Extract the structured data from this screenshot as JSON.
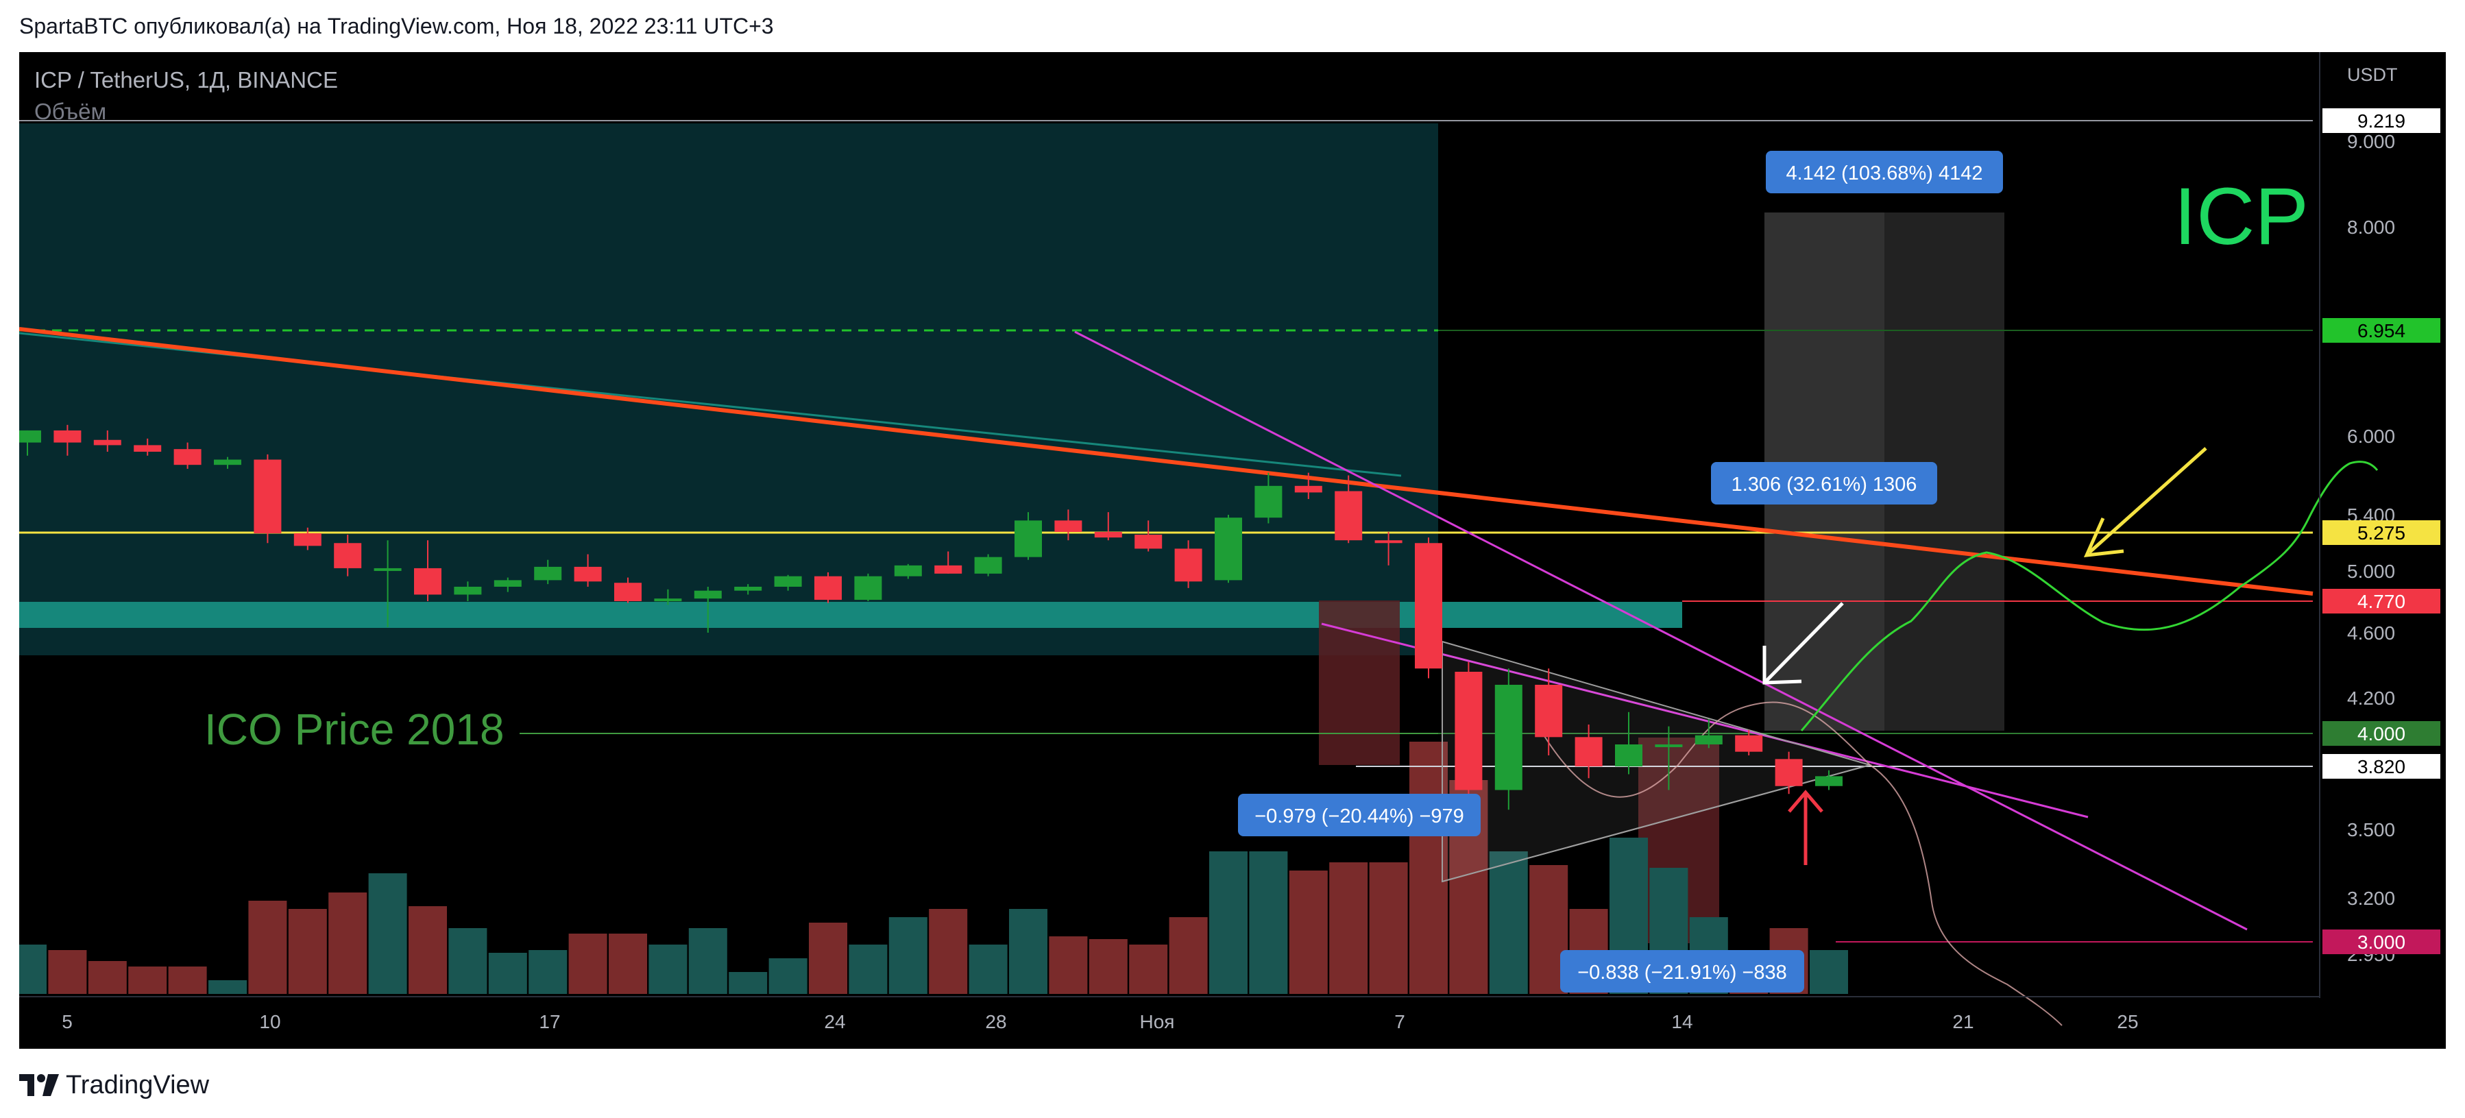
{
  "header": {
    "published": "SpartaBTC опубликовал(а) на TradingView.com, Ноя 18, 2022 23:11 UTC+3"
  },
  "footer": {
    "brand": "TradingView",
    "logo_icon": "tradingview-logo-icon"
  },
  "legend": {
    "symbol": "ICP / TetherUS, 1Д, BINANCE",
    "volume_label": "Объём"
  },
  "colors": {
    "background": "#000000",
    "up": "#1e9e36",
    "down": "#f23645",
    "volume_up": "#1a5652",
    "volume_down": "#7a2b2b",
    "trendline_orange": "#ff4a1a",
    "wedge_magenta": "#d63cd6",
    "level_yellow": "#f5e342",
    "zone_teal": "#16877b",
    "ico_green": "#3f9a3f",
    "projection_green": "#33d633",
    "label_blue": "#3a7bd5"
  },
  "annotations": {
    "ticker_big": "ICP",
    "ico_price": "ICO Price 2018",
    "measure_up_large": "4.142 (103.68%) 4142",
    "measure_up_small": "1.306 (32.61%) 1306",
    "measure_down_left": "−0.979 (−20.44%) −979",
    "measure_down_right": "−0.838 (−21.91%) −838"
  },
  "chart_data": {
    "type": "candlestick",
    "symbol": "ICP / TetherUS",
    "timeframe": "1Д",
    "exchange": "BINANCE",
    "y_unit": "USDT",
    "y_axis_ticks": [
      "9.000",
      "8.000",
      "6.000",
      "5.400",
      "5.000",
      "4.600",
      "4.200",
      "3.500",
      "3.200",
      "2.950"
    ],
    "x_axis_ticks": [
      "5",
      "10",
      "17",
      "24",
      "28",
      "Ноя",
      "7",
      "14",
      "21",
      "25"
    ],
    "price_labels": [
      {
        "value": "9.219",
        "bg": "#ffffff",
        "fg": "#000000"
      },
      {
        "value": "6.954",
        "bg": "#22c32b",
        "fg": "#000000"
      },
      {
        "value": "5.275",
        "bg": "#f5e342",
        "fg": "#000000"
      },
      {
        "value": "4.770",
        "bg": "#f23645",
        "fg": "#ffffff"
      },
      {
        "value": "4.000",
        "bg": "#2e7d32",
        "fg": "#ffffff"
      },
      {
        "value": "3.820",
        "bg": "#ffffff",
        "fg": "#000000"
      },
      {
        "value": "3.000",
        "bg": "#c2185b",
        "fg": "#ffffff"
      }
    ],
    "horizontal_levels": [
      9.219,
      6.954,
      5.275,
      4.77,
      4.0,
      3.82,
      3.0
    ],
    "candles": [
      {
        "date": "Oct 4",
        "o": 5.95,
        "h": 6.05,
        "l": 5.85,
        "c": 6.05
      },
      {
        "date": "Oct 5",
        "o": 6.05,
        "h": 6.1,
        "l": 5.85,
        "c": 5.95
      },
      {
        "date": "Oct 6",
        "o": 5.97,
        "h": 6.05,
        "l": 5.88,
        "c": 5.93
      },
      {
        "date": "Oct 7",
        "o": 5.93,
        "h": 5.98,
        "l": 5.85,
        "c": 5.88
      },
      {
        "date": "Oct 8",
        "o": 5.9,
        "h": 5.95,
        "l": 5.75,
        "c": 5.78
      },
      {
        "date": "Oct 9",
        "o": 5.78,
        "h": 5.84,
        "l": 5.75,
        "c": 5.82
      },
      {
        "date": "Oct 10",
        "o": 5.82,
        "h": 5.86,
        "l": 5.2,
        "c": 5.27
      },
      {
        "date": "Oct 11",
        "o": 5.27,
        "h": 5.31,
        "l": 5.15,
        "c": 5.18
      },
      {
        "date": "Oct 12",
        "o": 5.2,
        "h": 5.26,
        "l": 4.96,
        "c": 5.02
      },
      {
        "date": "Oct 13",
        "o": 5.02,
        "h": 5.22,
        "l": 4.63,
        "c": 5.02
      },
      {
        "date": "Oct 14",
        "o": 5.02,
        "h": 5.22,
        "l": 4.77,
        "c": 4.82
      },
      {
        "date": "Oct 15",
        "o": 4.82,
        "h": 4.92,
        "l": 4.77,
        "c": 4.88
      },
      {
        "date": "Oct 16",
        "o": 4.88,
        "h": 4.95,
        "l": 4.84,
        "c": 4.93
      },
      {
        "date": "Oct 17",
        "o": 4.93,
        "h": 5.08,
        "l": 4.9,
        "c": 5.03
      },
      {
        "date": "Oct 18",
        "o": 5.03,
        "h": 5.12,
        "l": 4.88,
        "c": 4.92
      },
      {
        "date": "Oct 19",
        "o": 4.91,
        "h": 4.95,
        "l": 4.76,
        "c": 4.77
      },
      {
        "date": "Oct 20",
        "o": 4.77,
        "h": 4.86,
        "l": 4.75,
        "c": 4.79
      },
      {
        "date": "Oct 21",
        "o": 4.79,
        "h": 4.88,
        "l": 4.6,
        "c": 4.85
      },
      {
        "date": "Oct 22",
        "o": 4.85,
        "h": 4.9,
        "l": 4.82,
        "c": 4.88
      },
      {
        "date": "Oct 23",
        "o": 4.88,
        "h": 4.97,
        "l": 4.85,
        "c": 4.96
      },
      {
        "date": "Oct 24",
        "o": 4.96,
        "h": 4.99,
        "l": 4.76,
        "c": 4.78
      },
      {
        "date": "Oct 25",
        "o": 4.78,
        "h": 4.98,
        "l": 4.77,
        "c": 4.96
      },
      {
        "date": "Oct 26",
        "o": 4.96,
        "h": 5.05,
        "l": 4.94,
        "c": 5.04
      },
      {
        "date": "Oct 27",
        "o": 5.04,
        "h": 5.14,
        "l": 4.98,
        "c": 4.98
      },
      {
        "date": "Oct 28",
        "o": 4.98,
        "h": 5.12,
        "l": 4.96,
        "c": 5.1
      },
      {
        "date": "Oct 29",
        "o": 5.1,
        "h": 5.42,
        "l": 5.08,
        "c": 5.36
      },
      {
        "date": "Oct 30",
        "o": 5.36,
        "h": 5.44,
        "l": 5.22,
        "c": 5.28
      },
      {
        "date": "Oct 31",
        "o": 5.28,
        "h": 5.42,
        "l": 5.22,
        "c": 5.24
      },
      {
        "date": "Nov 1",
        "o": 5.26,
        "h": 5.36,
        "l": 5.14,
        "c": 5.16
      },
      {
        "date": "Nov 2",
        "o": 5.16,
        "h": 5.22,
        "l": 4.87,
        "c": 4.92
      },
      {
        "date": "Nov 3",
        "o": 4.93,
        "h": 5.4,
        "l": 4.91,
        "c": 5.38
      },
      {
        "date": "Nov 4",
        "o": 5.38,
        "h": 5.72,
        "l": 5.34,
        "c": 5.62
      },
      {
        "date": "Nov 5",
        "o": 5.62,
        "h": 5.72,
        "l": 5.52,
        "c": 5.57
      },
      {
        "date": "Nov 6",
        "o": 5.58,
        "h": 5.7,
        "l": 5.2,
        "c": 5.22
      },
      {
        "date": "Nov 7",
        "o": 5.22,
        "h": 5.28,
        "l": 5.04,
        "c": 5.2
      },
      {
        "date": "Nov 8",
        "o": 5.2,
        "h": 5.24,
        "l": 4.32,
        "c": 4.38
      },
      {
        "date": "Nov 9",
        "o": 4.36,
        "h": 4.42,
        "l": 3.66,
        "c": 3.7
      },
      {
        "date": "Nov 10",
        "o": 3.7,
        "h": 4.38,
        "l": 3.6,
        "c": 4.28
      },
      {
        "date": "Nov 11",
        "o": 4.28,
        "h": 4.38,
        "l": 3.88,
        "c": 3.98
      },
      {
        "date": "Nov 12",
        "o": 3.98,
        "h": 4.05,
        "l": 3.76,
        "c": 3.82
      },
      {
        "date": "Nov 13",
        "o": 3.82,
        "h": 4.12,
        "l": 3.78,
        "c": 3.94
      },
      {
        "date": "Nov 14",
        "o": 3.94,
        "h": 4.04,
        "l": 3.7,
        "c": 3.94
      },
      {
        "date": "Nov 15",
        "o": 3.94,
        "h": 4.08,
        "l": 3.92,
        "c": 3.99
      },
      {
        "date": "Nov 16",
        "o": 3.99,
        "h": 4.02,
        "l": 3.88,
        "c": 3.9
      },
      {
        "date": "Nov 17",
        "o": 3.86,
        "h": 3.9,
        "l": 3.68,
        "c": 3.72
      },
      {
        "date": "Nov 18",
        "o": 3.72,
        "h": 3.8,
        "l": 3.7,
        "c": 3.77
      }
    ],
    "volume_relative": [
      0.18,
      0.16,
      0.12,
      0.1,
      0.1,
      0.05,
      0.34,
      0.31,
      0.37,
      0.44,
      0.32,
      0.24,
      0.15,
      0.16,
      0.22,
      0.22,
      0.18,
      0.24,
      0.08,
      0.13,
      0.26,
      0.18,
      0.28,
      0.31,
      0.18,
      0.31,
      0.21,
      0.2,
      0.18,
      0.28,
      0.52,
      0.52,
      0.45,
      0.48,
      0.48,
      0.92,
      0.78,
      0.52,
      0.47,
      0.31,
      0.57,
      0.46,
      0.28,
      0.15,
      0.24,
      0.16
    ]
  }
}
